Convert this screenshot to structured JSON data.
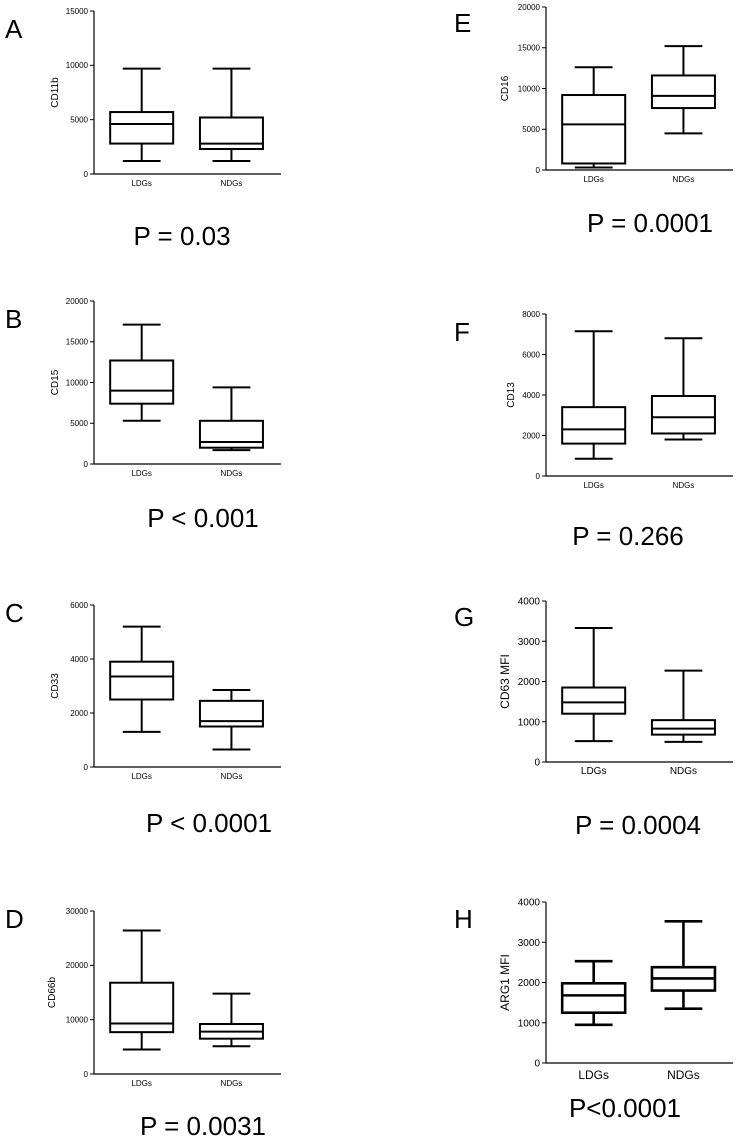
{
  "chart_data": [
    {
      "type": "box",
      "panel": "A",
      "ylabel": "CD11b",
      "ylim": [
        0,
        15000
      ],
      "yticks": [
        "0",
        "5000",
        "10000",
        "15000"
      ],
      "categories": [
        "LDGs",
        "NDGs"
      ],
      "boxes": [
        {
          "category": "LDGs",
          "min": 1200,
          "q1": 2800,
          "median": 4600,
          "q3": 5700,
          "max": 9700
        },
        {
          "category": "NDGs",
          "min": 1200,
          "q1": 2300,
          "median": 2800,
          "q3": 5200,
          "max": 9700
        }
      ],
      "pvalue": "P = 0.03"
    },
    {
      "type": "box",
      "panel": "B",
      "ylabel": "CD15",
      "ylim": [
        0,
        20000
      ],
      "yticks": [
        "0",
        "5000",
        "10000",
        "15000",
        "20000"
      ],
      "categories": [
        "LDGs",
        "NDGs"
      ],
      "boxes": [
        {
          "category": "LDGs",
          "min": 5300,
          "q1": 7400,
          "median": 9000,
          "q3": 12700,
          "max": 17100
        },
        {
          "category": "NDGs",
          "min": 1700,
          "q1": 2000,
          "median": 2700,
          "q3": 5300,
          "max": 9400
        }
      ],
      "pvalue": "P < 0.001"
    },
    {
      "type": "box",
      "panel": "C",
      "ylabel": "CD33",
      "ylim": [
        0,
        6000
      ],
      "yticks": [
        "0",
        "2000",
        "4000",
        "6000"
      ],
      "categories": [
        "LDGs",
        "NDGs"
      ],
      "boxes": [
        {
          "category": "LDGs",
          "min": 1300,
          "q1": 2500,
          "median": 3350,
          "q3": 3900,
          "max": 5200
        },
        {
          "category": "NDGs",
          "min": 650,
          "q1": 1500,
          "median": 1700,
          "q3": 2450,
          "max": 2850
        }
      ],
      "pvalue": "P < 0.0001"
    },
    {
      "type": "box",
      "panel": "D",
      "ylabel": "CD66b",
      "ylim": [
        0,
        30000
      ],
      "yticks": [
        "0",
        "10000",
        "20000",
        "30000"
      ],
      "categories": [
        "LDGs",
        "NDGs"
      ],
      "boxes": [
        {
          "category": "LDGs",
          "min": 4500,
          "q1": 7700,
          "median": 9300,
          "q3": 16800,
          "max": 26400
        },
        {
          "category": "NDGs",
          "min": 5100,
          "q1": 6500,
          "median": 7800,
          "q3": 9200,
          "max": 14800
        }
      ],
      "pvalue": "P = 0.0031"
    },
    {
      "type": "box",
      "panel": "E",
      "ylabel": "CD16",
      "ylim": [
        0,
        20000
      ],
      "yticks": [
        "0",
        "5000",
        "10000",
        "15000",
        "20000"
      ],
      "categories": [
        "LDGs",
        "NDGs"
      ],
      "boxes": [
        {
          "category": "LDGs",
          "min": 300,
          "q1": 800,
          "median": 5600,
          "q3": 9200,
          "max": 12600
        },
        {
          "category": "NDGs",
          "min": 4500,
          "q1": 7600,
          "median": 9100,
          "q3": 11600,
          "max": 15200
        }
      ],
      "pvalue": "P = 0.0001"
    },
    {
      "type": "box",
      "panel": "F",
      "ylabel": "CD13",
      "ylim": [
        0,
        8000
      ],
      "yticks": [
        "0",
        "2000",
        "4000",
        "6000",
        "8000"
      ],
      "categories": [
        "LDGs",
        "NDGs"
      ],
      "boxes": [
        {
          "category": "LDGs",
          "min": 850,
          "q1": 1600,
          "median": 2300,
          "q3": 3400,
          "max": 7150
        },
        {
          "category": "NDGs",
          "min": 1800,
          "q1": 2100,
          "median": 2900,
          "q3": 3950,
          "max": 6800
        }
      ],
      "pvalue": "P = 0.266"
    },
    {
      "type": "box",
      "panel": "G",
      "ylabel": "CD63 MFI",
      "ylim": [
        0,
        4000
      ],
      "yticks": [
        "0",
        "1000",
        "2000",
        "3000",
        "4000"
      ],
      "categories": [
        "LDGs",
        "NDGs"
      ],
      "boxes": [
        {
          "category": "LDGs",
          "min": 520,
          "q1": 1200,
          "median": 1480,
          "q3": 1850,
          "max": 3330
        },
        {
          "category": "NDGs",
          "min": 500,
          "q1": 680,
          "median": 830,
          "q3": 1040,
          "max": 2270
        }
      ],
      "pvalue": "P = 0.0004"
    },
    {
      "type": "box",
      "panel": "H",
      "ylabel": "ARG1 MFI",
      "ylim": [
        0,
        4000
      ],
      "yticks": [
        "0",
        "1000",
        "2000",
        "3000",
        "4000"
      ],
      "categories": [
        "LDGs",
        "NDGs"
      ],
      "boxes": [
        {
          "category": "LDGs",
          "min": 950,
          "q1": 1250,
          "median": 1680,
          "q3": 1980,
          "max": 2530
        },
        {
          "category": "NDGs",
          "min": 1350,
          "q1": 1800,
          "median": 2100,
          "q3": 2380,
          "max": 3520
        }
      ],
      "pvalue": "P<0.0001"
    }
  ]
}
